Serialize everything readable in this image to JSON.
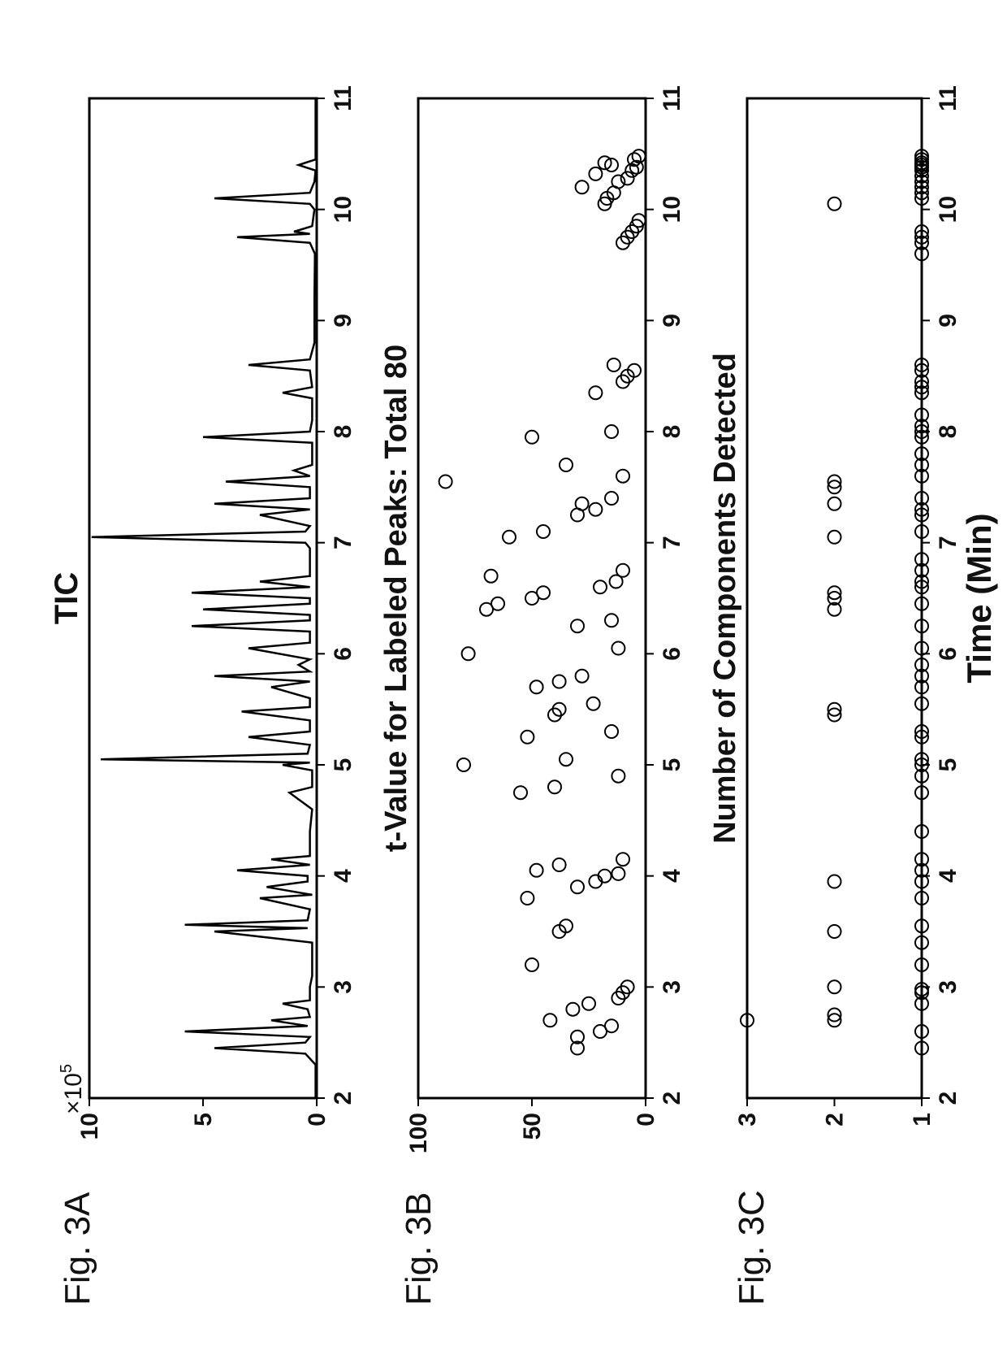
{
  "global": {
    "rotation": -90,
    "background": "#ffffff",
    "font_family": "Arial, Helvetica, sans-serif",
    "text_color": "#111111",
    "axis_color": "#000000",
    "tick_font_size": 30,
    "title_font_size": 36,
    "fig_label_font_size": 40,
    "xlabel": "Time (Min)",
    "xlabel_font_size": 38,
    "xlim": [
      2,
      11
    ],
    "xticks": [
      2,
      3,
      4,
      5,
      6,
      7,
      8,
      9,
      10,
      11
    ],
    "plot_line_color": "#000000",
    "plot_line_width": 2,
    "marker_fill": "none",
    "marker_stroke": "#000000",
    "marker_stroke_width": 2,
    "marker_radius": 8
  },
  "panelA": {
    "fig_label": "Fig. 3A",
    "title": "TIC",
    "type": "line",
    "ylim": [
      0,
      10
    ],
    "yticks": [
      0,
      5,
      10
    ],
    "y_exponent_label": "×10",
    "y_exponent_sup": "5",
    "data": [
      [
        2.0,
        0.05
      ],
      [
        2.3,
        0.05
      ],
      [
        2.4,
        0.5
      ],
      [
        2.45,
        4.5
      ],
      [
        2.5,
        0.5
      ],
      [
        2.55,
        0.3
      ],
      [
        2.6,
        5.8
      ],
      [
        2.65,
        0.4
      ],
      [
        2.7,
        2.0
      ],
      [
        2.73,
        0.3
      ],
      [
        2.8,
        0.4
      ],
      [
        2.85,
        1.5
      ],
      [
        2.88,
        0.3
      ],
      [
        2.95,
        0.3
      ],
      [
        3.0,
        0.3
      ],
      [
        3.1,
        0.2
      ],
      [
        3.2,
        0.2
      ],
      [
        3.3,
        0.2
      ],
      [
        3.4,
        0.2
      ],
      [
        3.5,
        4.5
      ],
      [
        3.53,
        0.4
      ],
      [
        3.56,
        5.8
      ],
      [
        3.6,
        0.4
      ],
      [
        3.7,
        0.3
      ],
      [
        3.8,
        2.5
      ],
      [
        3.83,
        0.2
      ],
      [
        3.9,
        2.2
      ],
      [
        3.95,
        0.4
      ],
      [
        4.0,
        0.4
      ],
      [
        4.05,
        3.5
      ],
      [
        4.1,
        0.3
      ],
      [
        4.15,
        2.0
      ],
      [
        4.18,
        0.3
      ],
      [
        4.25,
        0.3
      ],
      [
        4.4,
        0.3
      ],
      [
        4.6,
        0.2
      ],
      [
        4.75,
        1.2
      ],
      [
        4.8,
        0.2
      ],
      [
        4.85,
        0.2
      ],
      [
        4.9,
        0.2
      ],
      [
        4.95,
        0.2
      ],
      [
        5.0,
        1.5
      ],
      [
        5.02,
        0.3
      ],
      [
        5.05,
        9.5
      ],
      [
        5.1,
        0.4
      ],
      [
        5.18,
        0.3
      ],
      [
        5.25,
        3.0
      ],
      [
        5.3,
        0.3
      ],
      [
        5.4,
        0.3
      ],
      [
        5.48,
        3.3
      ],
      [
        5.52,
        0.3
      ],
      [
        5.6,
        0.3
      ],
      [
        5.7,
        2.0
      ],
      [
        5.75,
        0.3
      ],
      [
        5.8,
        4.5
      ],
      [
        5.84,
        0.3
      ],
      [
        5.9,
        0.8
      ],
      [
        5.95,
        0.3
      ],
      [
        6.05,
        3.0
      ],
      [
        6.1,
        0.3
      ],
      [
        6.2,
        0.3
      ],
      [
        6.25,
        5.5
      ],
      [
        6.3,
        0.3
      ],
      [
        6.35,
        0.3
      ],
      [
        6.4,
        5.0
      ],
      [
        6.45,
        0.3
      ],
      [
        6.5,
        0.3
      ],
      [
        6.55,
        5.5
      ],
      [
        6.6,
        0.3
      ],
      [
        6.65,
        2.5
      ],
      [
        6.7,
        0.3
      ],
      [
        6.8,
        0.3
      ],
      [
        6.95,
        0.3
      ],
      [
        7.0,
        0.5
      ],
      [
        7.05,
        9.9
      ],
      [
        7.1,
        0.5
      ],
      [
        7.15,
        0.3
      ],
      [
        7.25,
        2.5
      ],
      [
        7.3,
        0.3
      ],
      [
        7.35,
        4.5
      ],
      [
        7.4,
        0.3
      ],
      [
        7.5,
        0.3
      ],
      [
        7.55,
        4.0
      ],
      [
        7.6,
        0.3
      ],
      [
        7.65,
        1.0
      ],
      [
        7.7,
        0.2
      ],
      [
        7.9,
        0.2
      ],
      [
        7.95,
        5.0
      ],
      [
        8.0,
        0.3
      ],
      [
        8.1,
        0.2
      ],
      [
        8.3,
        0.2
      ],
      [
        8.35,
        1.5
      ],
      [
        8.4,
        0.2
      ],
      [
        8.55,
        0.3
      ],
      [
        8.6,
        3.0
      ],
      [
        8.65,
        0.3
      ],
      [
        8.8,
        0.1
      ],
      [
        9.2,
        0.1
      ],
      [
        9.6,
        0.08
      ],
      [
        9.7,
        0.3
      ],
      [
        9.75,
        3.5
      ],
      [
        9.78,
        0.3
      ],
      [
        9.8,
        1.0
      ],
      [
        9.85,
        0.2
      ],
      [
        10.0,
        0.1
      ],
      [
        10.05,
        0.3
      ],
      [
        10.1,
        4.5
      ],
      [
        10.15,
        0.3
      ],
      [
        10.25,
        0.1
      ],
      [
        10.35,
        0.05
      ],
      [
        10.4,
        0.8
      ],
      [
        10.45,
        0.05
      ],
      [
        10.6,
        0.05
      ],
      [
        10.8,
        0.05
      ],
      [
        11.0,
        0.05
      ]
    ]
  },
  "panelB": {
    "fig_label": "Fig. 3B",
    "title": "t-Value for Labeled Peaks: Total 80",
    "type": "scatter",
    "ylim": [
      0,
      100
    ],
    "yticks": [
      0,
      50,
      100
    ],
    "points": [
      [
        2.45,
        30
      ],
      [
        2.55,
        30
      ],
      [
        2.6,
        20
      ],
      [
        2.65,
        15
      ],
      [
        2.7,
        42
      ],
      [
        2.8,
        32
      ],
      [
        2.85,
        25
      ],
      [
        2.9,
        12
      ],
      [
        2.95,
        10
      ],
      [
        3.0,
        8
      ],
      [
        3.2,
        50
      ],
      [
        3.5,
        38
      ],
      [
        3.55,
        35
      ],
      [
        3.8,
        52
      ],
      [
        3.9,
        30
      ],
      [
        3.95,
        22
      ],
      [
        4.0,
        18
      ],
      [
        4.02,
        12
      ],
      [
        4.05,
        48
      ],
      [
        4.1,
        38
      ],
      [
        4.15,
        10
      ],
      [
        4.75,
        55
      ],
      [
        4.8,
        40
      ],
      [
        4.9,
        12
      ],
      [
        5.0,
        80
      ],
      [
        5.05,
        35
      ],
      [
        5.25,
        52
      ],
      [
        5.3,
        15
      ],
      [
        5.45,
        40
      ],
      [
        5.5,
        38
      ],
      [
        5.55,
        23
      ],
      [
        5.7,
        48
      ],
      [
        5.75,
        38
      ],
      [
        5.8,
        28
      ],
      [
        6.0,
        78
      ],
      [
        6.05,
        12
      ],
      [
        6.25,
        30
      ],
      [
        6.3,
        15
      ],
      [
        6.4,
        70
      ],
      [
        6.45,
        65
      ],
      [
        6.5,
        50
      ],
      [
        6.55,
        45
      ],
      [
        6.6,
        20
      ],
      [
        6.65,
        13
      ],
      [
        6.7,
        68
      ],
      [
        6.75,
        10
      ],
      [
        7.05,
        60
      ],
      [
        7.1,
        45
      ],
      [
        7.25,
        30
      ],
      [
        7.3,
        22
      ],
      [
        7.35,
        28
      ],
      [
        7.4,
        15
      ],
      [
        7.55,
        88
      ],
      [
        7.6,
        10
      ],
      [
        7.7,
        35
      ],
      [
        7.95,
        50
      ],
      [
        8.0,
        15
      ],
      [
        8.35,
        22
      ],
      [
        8.45,
        10
      ],
      [
        8.5,
        8
      ],
      [
        8.55,
        5
      ],
      [
        8.6,
        14
      ],
      [
        9.7,
        10
      ],
      [
        9.75,
        8
      ],
      [
        9.8,
        6
      ],
      [
        9.85,
        4
      ],
      [
        9.9,
        3
      ],
      [
        10.05,
        18
      ],
      [
        10.1,
        17
      ],
      [
        10.15,
        14
      ],
      [
        10.2,
        28
      ],
      [
        10.25,
        12
      ],
      [
        10.28,
        8
      ],
      [
        10.32,
        22
      ],
      [
        10.35,
        6
      ],
      [
        10.38,
        4
      ],
      [
        10.4,
        15
      ],
      [
        10.42,
        18
      ],
      [
        10.45,
        5
      ],
      [
        10.48,
        3
      ]
    ]
  },
  "panelC": {
    "fig_label": "Fig. 3C",
    "title": "Number of Components Detected",
    "type": "scatter",
    "ylim": [
      1,
      3
    ],
    "yticks": [
      1,
      2,
      3
    ],
    "points": [
      [
        2.45,
        1
      ],
      [
        2.6,
        1
      ],
      [
        2.7,
        3
      ],
      [
        2.7,
        2
      ],
      [
        2.75,
        2
      ],
      [
        2.85,
        1
      ],
      [
        2.95,
        1
      ],
      [
        2.98,
        1
      ],
      [
        3.0,
        2
      ],
      [
        3.2,
        1
      ],
      [
        3.4,
        1
      ],
      [
        3.5,
        2
      ],
      [
        3.55,
        1
      ],
      [
        3.8,
        1
      ],
      [
        3.95,
        2
      ],
      [
        3.95,
        1
      ],
      [
        4.05,
        1
      ],
      [
        4.15,
        1
      ],
      [
        4.4,
        1
      ],
      [
        4.75,
        1
      ],
      [
        4.9,
        1
      ],
      [
        5.0,
        1
      ],
      [
        5.05,
        1
      ],
      [
        5.25,
        1
      ],
      [
        5.3,
        1
      ],
      [
        5.45,
        2
      ],
      [
        5.5,
        2
      ],
      [
        5.55,
        1
      ],
      [
        5.7,
        1
      ],
      [
        5.8,
        1
      ],
      [
        5.9,
        1
      ],
      [
        6.05,
        1
      ],
      [
        6.25,
        1
      ],
      [
        6.4,
        2
      ],
      [
        6.45,
        1
      ],
      [
        6.5,
        2
      ],
      [
        6.55,
        2
      ],
      [
        6.6,
        1
      ],
      [
        6.65,
        1
      ],
      [
        6.75,
        1
      ],
      [
        6.85,
        1
      ],
      [
        7.05,
        2
      ],
      [
        7.1,
        1
      ],
      [
        7.25,
        1
      ],
      [
        7.3,
        1
      ],
      [
        7.35,
        2
      ],
      [
        7.4,
        1
      ],
      [
        7.5,
        2
      ],
      [
        7.55,
        2
      ],
      [
        7.6,
        1
      ],
      [
        7.7,
        1
      ],
      [
        7.8,
        1
      ],
      [
        7.95,
        1
      ],
      [
        8.0,
        1
      ],
      [
        8.05,
        1
      ],
      [
        8.15,
        1
      ],
      [
        8.35,
        1
      ],
      [
        8.4,
        1
      ],
      [
        8.45,
        1
      ],
      [
        8.55,
        1
      ],
      [
        8.6,
        1
      ],
      [
        9.6,
        1
      ],
      [
        9.7,
        1
      ],
      [
        9.75,
        1
      ],
      [
        9.8,
        1
      ],
      [
        10.05,
        2
      ],
      [
        10.1,
        1
      ],
      [
        10.15,
        1
      ],
      [
        10.2,
        1
      ],
      [
        10.25,
        1
      ],
      [
        10.3,
        1
      ],
      [
        10.35,
        1
      ],
      [
        10.38,
        1
      ],
      [
        10.4,
        1
      ],
      [
        10.42,
        1
      ],
      [
        10.45,
        1
      ],
      [
        10.48,
        1
      ]
    ]
  }
}
